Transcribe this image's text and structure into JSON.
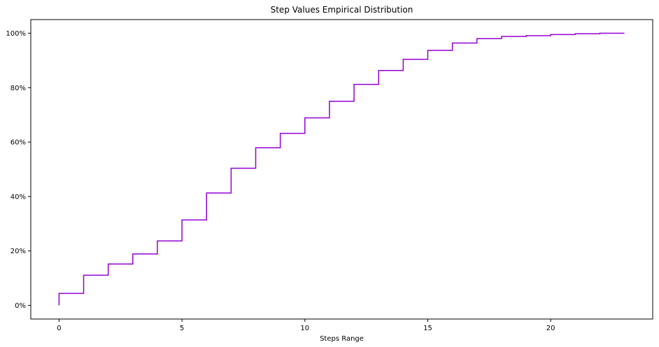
{
  "chart_data": {
    "type": "line",
    "style": "step-post",
    "title": "Step Values Empirical Distribution",
    "xlabel": "Steps Range",
    "ylabel": "",
    "xlim": [
      -1.15,
      24.15
    ],
    "ylim": [
      -5,
      105
    ],
    "xticks": [
      0,
      5,
      10,
      15,
      20
    ],
    "yticks": [
      0,
      20,
      40,
      60,
      80,
      100
    ],
    "ytick_format": "percent",
    "grid": false,
    "line_color": "#9400d3",
    "series": [
      {
        "x": [
          0,
          0,
          1,
          2,
          3,
          4,
          5,
          6,
          7,
          8,
          9,
          10,
          11,
          12,
          13,
          14,
          15,
          16,
          17,
          18,
          19,
          20,
          21,
          22,
          23
        ],
        "y": [
          0,
          4.4,
          11.1,
          15.2,
          18.9,
          23.7,
          31.4,
          41.3,
          50.4,
          57.9,
          63.2,
          68.9,
          75.0,
          81.2,
          86.3,
          90.4,
          93.7,
          96.4,
          98.0,
          98.8,
          99.1,
          99.5,
          99.8,
          100.0,
          100.0
        ]
      }
    ]
  }
}
